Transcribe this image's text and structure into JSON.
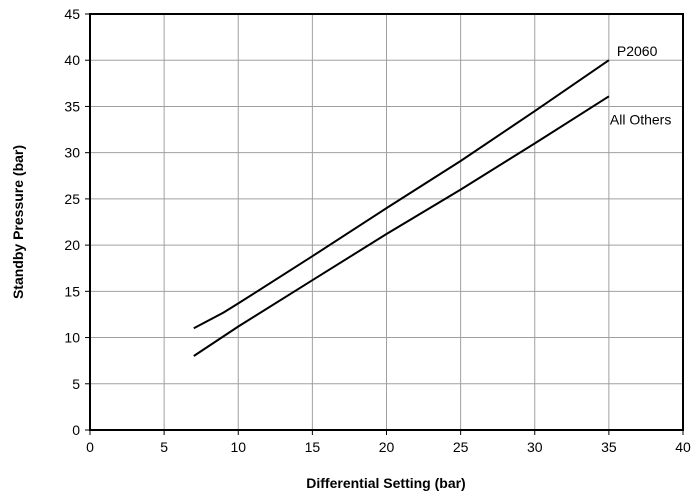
{
  "chart_data": {
    "type": "line",
    "title": "",
    "xlabel": "Differential Setting (bar)",
    "ylabel": "Standby Pressure (bar)",
    "xlim": [
      0,
      40
    ],
    "ylim": [
      0,
      45
    ],
    "xticks": [
      0,
      5,
      10,
      15,
      20,
      25,
      30,
      35,
      40
    ],
    "yticks": [
      0,
      5,
      10,
      15,
      20,
      25,
      30,
      35,
      40,
      45
    ],
    "xtick_labels": [
      "0",
      "5",
      "10",
      "15",
      "20",
      "25",
      "30",
      "35",
      "40"
    ],
    "ytick_labels": [
      "0",
      "5",
      "10",
      "15",
      "20",
      "25",
      "30",
      "35",
      "40",
      "45"
    ],
    "grid": true,
    "legend": "none",
    "series": [
      {
        "name": "P2060",
        "x": [
          7,
          9,
          10,
          15,
          20,
          25,
          30,
          35
        ],
        "y": [
          11,
          12.7,
          13.7,
          18.8,
          24,
          29.1,
          34.5,
          40
        ]
      },
      {
        "name": "All Others",
        "x": [
          7,
          10,
          15,
          20,
          25,
          30,
          35
        ],
        "y": [
          8,
          11.2,
          16.2,
          21.2,
          26,
          31,
          36.1
        ]
      }
    ],
    "colors": {
      "line": "#000000",
      "grid": "#a0a0a0",
      "frame": "#000000"
    }
  }
}
